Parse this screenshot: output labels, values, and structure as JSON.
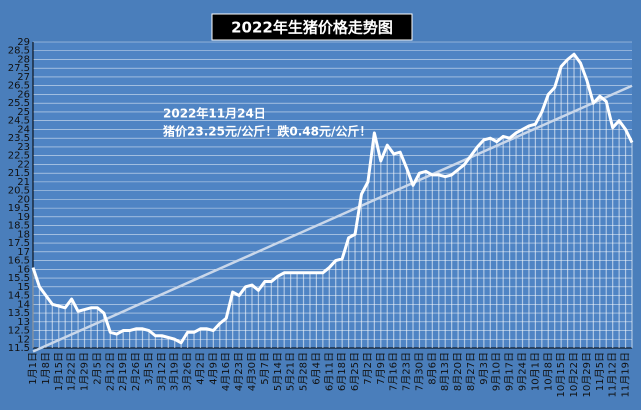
{
  "chart_data": {
    "type": "line",
    "title": "2022年生猪价格走势图",
    "annotations": [
      "2022年11月24日",
      "猪价23.25元/公斤！跌0.48元/公斤！"
    ],
    "categories": [
      "1月1日",
      null,
      "1月8日",
      null,
      "1月15日",
      null,
      "1月22日",
      null,
      "1月29日",
      null,
      "2月5日",
      null,
      "2月12日",
      null,
      "2月19日",
      null,
      "2月26日",
      null,
      "3月5日",
      null,
      "3月12日",
      null,
      "3月19日",
      null,
      "3月26日",
      null,
      "4月2日",
      null,
      "4月9日",
      null,
      "4月16日",
      null,
      "4月23日",
      null,
      "4月30日",
      null,
      "5月7日",
      null,
      "5月14日",
      null,
      "5月21日",
      null,
      "5月28日",
      null,
      "6月4日",
      null,
      "6月11日",
      null,
      "6月18日",
      null,
      "6月25日",
      null,
      "7月2日",
      null,
      "7月9日",
      null,
      "7月16日",
      null,
      "7月23日",
      null,
      "7月30日",
      null,
      "8月6日",
      null,
      "8月13日",
      null,
      "8月20日",
      null,
      "8月27日",
      null,
      "9月3日",
      null,
      "9月10日",
      null,
      "9月17日",
      null,
      "9月24日",
      null,
      "10月1日",
      null,
      "10月8日",
      null,
      "10月15日",
      null,
      "10月22日",
      null,
      "10月29日",
      null,
      "11月5日",
      null,
      "11月12日",
      null,
      "11月19日",
      null
    ],
    "values": [
      16.1,
      15.0,
      14.5,
      14.0,
      13.9,
      13.8,
      14.3,
      13.6,
      13.7,
      13.8,
      13.8,
      13.5,
      12.4,
      12.3,
      12.5,
      12.5,
      12.6,
      12.6,
      12.5,
      12.2,
      12.2,
      12.1,
      12.0,
      11.8,
      12.4,
      12.4,
      12.6,
      12.6,
      12.5,
      12.9,
      13.2,
      14.7,
      14.5,
      15.0,
      15.1,
      14.8,
      15.3,
      15.3,
      15.6,
      15.8,
      15.8,
      15.8,
      15.8,
      15.8,
      15.8,
      15.8,
      16.1,
      16.5,
      16.6,
      17.8,
      18.0,
      20.3,
      21.0,
      23.8,
      22.2,
      23.1,
      22.6,
      22.7,
      21.8,
      20.8,
      21.5,
      21.6,
      21.4,
      21.4,
      21.3,
      21.4,
      21.7,
      22.0,
      22.5,
      23.0,
      23.4,
      23.5,
      23.3,
      23.6,
      23.5,
      23.8,
      24.0,
      24.2,
      24.3,
      25.0,
      26.0,
      26.4,
      27.6,
      28.0,
      28.3,
      27.8,
      26.8,
      25.5,
      25.9,
      25.6,
      24.1,
      24.5,
      24.0,
      23.25
    ],
    "color": "#ffffff",
    "trend": {
      "start": 11.3,
      "end": 26.5,
      "color": "#c9d7ea"
    },
    "ylim": [
      11.5,
      29
    ],
    "yticks": [
      11.5,
      12,
      12.5,
      13,
      13.5,
      14,
      14.5,
      15,
      15.5,
      16,
      16.5,
      17,
      17.5,
      18,
      18.5,
      19,
      19.5,
      20,
      20.5,
      21,
      21.5,
      22,
      22.5,
      23,
      23.5,
      24,
      24.5,
      25,
      25.5,
      26,
      26.5,
      27,
      27.5,
      28,
      28.5,
      29
    ],
    "grid": true
  }
}
